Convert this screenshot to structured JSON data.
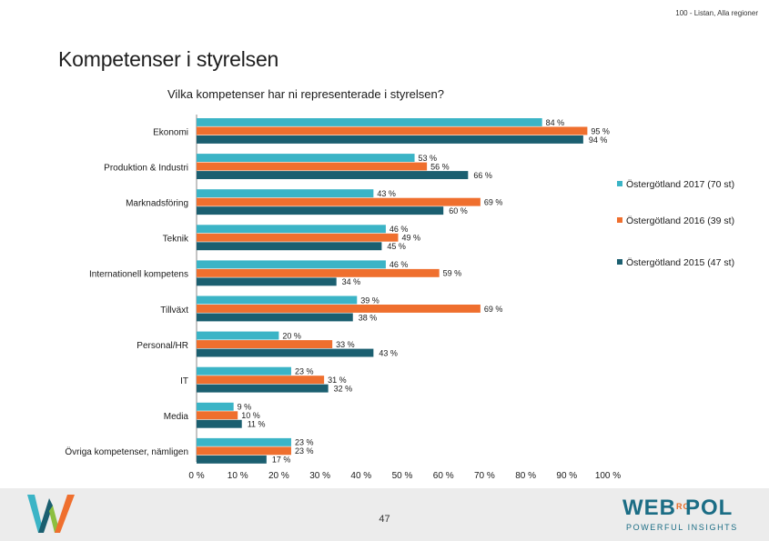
{
  "header": {
    "note": "100 - Listan, Alla regioner",
    "title": "Kompetenser i styrelsen"
  },
  "footer": {
    "page_number": "47",
    "brand_left": "WEB",
    "brand_mid": "RO",
    "brand_right": "POL",
    "tagline": "POWERFUL INSIGHTS"
  },
  "colors": {
    "s2017": "#3bb4c6",
    "s2016": "#ef6f2e",
    "s2015": "#1b5f70",
    "footer_bg": "#ececec",
    "brand": "#1b6d85"
  },
  "chart_data": {
    "type": "bar",
    "orientation": "horizontal",
    "title": "Vilka kompetenser har ni representerade i styrelsen?",
    "categories": [
      "Ekonomi",
      "Produktion & Industri",
      "Marknadsföring",
      "Teknik",
      "Internationell kompetens",
      "Tillväxt",
      "Personal/HR",
      "IT",
      "Media",
      "Övriga kompetenser, nämligen"
    ],
    "series": [
      {
        "name": "Östergötland 2017 (70 st)",
        "values": [
          84,
          53,
          43,
          46,
          46,
          39,
          20,
          23,
          9,
          23
        ]
      },
      {
        "name": "Östergötland 2016 (39 st)",
        "values": [
          95,
          56,
          69,
          49,
          59,
          69,
          33,
          31,
          10,
          23
        ]
      },
      {
        "name": "Östergötland 2015 (47 st)",
        "values": [
          94,
          66,
          60,
          45,
          34,
          38,
          43,
          32,
          11,
          17
        ]
      }
    ],
    "xlim": [
      0,
      100
    ],
    "xticks": [
      0,
      10,
      20,
      30,
      40,
      50,
      60,
      70,
      80,
      90,
      100
    ],
    "tick_suffix": " %",
    "value_suffix": " %",
    "legend_position": "right",
    "grid": false
  }
}
